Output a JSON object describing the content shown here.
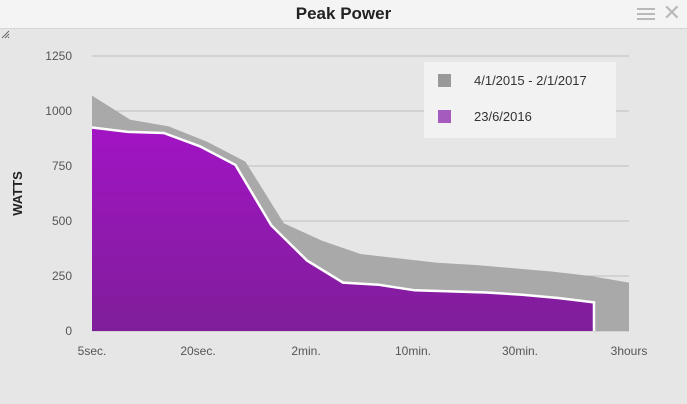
{
  "window": {
    "title": "Peak Power",
    "menu_icon": "menu-icon",
    "close_icon": "close-icon"
  },
  "chart_data": {
    "type": "area",
    "title": "Peak Power",
    "ylabel": "WATTS",
    "xlabel": "",
    "ylim": [
      0,
      1250
    ],
    "yticks": [
      0,
      250,
      500,
      750,
      1000,
      1250
    ],
    "xtick_labels": [
      "5sec.",
      "20sec.",
      "2min.",
      "10min.",
      "30min.",
      "3hours"
    ],
    "grid": true,
    "legend_position": "top-right",
    "series": [
      {
        "name": "4/1/2015 - 2/1/2017",
        "color": "#a9a9a9",
        "values": [
          1070,
          960,
          930,
          860,
          770,
          490,
          410,
          350,
          330,
          310,
          300,
          285,
          270,
          250,
          220
        ]
      },
      {
        "name": "23/6/2016",
        "color": "#9a1bb8",
        "values": [
          925,
          905,
          900,
          840,
          755,
          480,
          320,
          220,
          210,
          185,
          180,
          175,
          165,
          150,
          130
        ]
      }
    ]
  }
}
